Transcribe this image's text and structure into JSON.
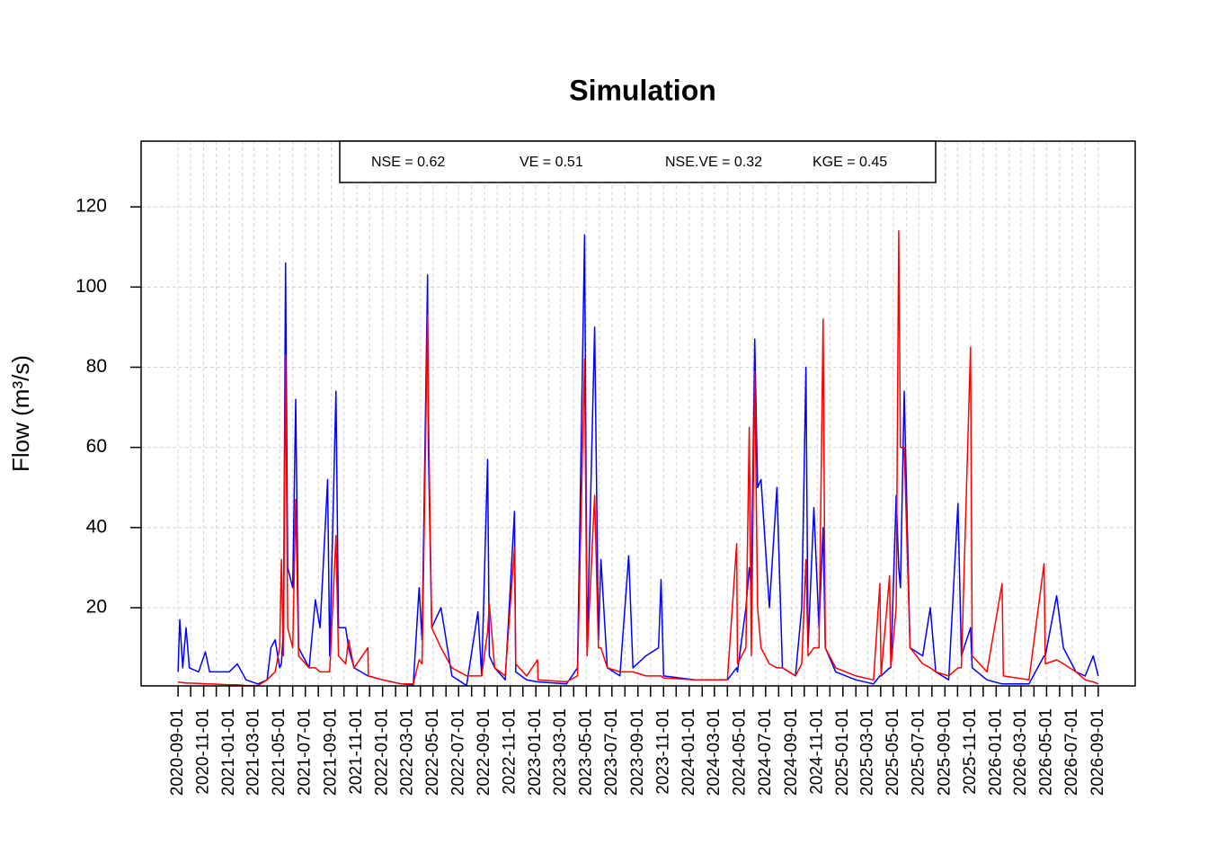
{
  "chart_data": {
    "type": "line",
    "title": "Simulation",
    "y_label": "Flow (m³/s)",
    "annotations": [
      "NSE = 0.62",
      "VE = 0.51",
      "NSE.VE = 0.32",
      "KGE = 0.45"
    ],
    "x": [
      "2020-09-01",
      "2020-09-05",
      "2020-09-12",
      "2020-09-20",
      "2020-09-28",
      "2020-10-20",
      "2020-11-05",
      "2020-11-15",
      "2021-01-01",
      "2021-01-20",
      "2021-02-10",
      "2021-03-10",
      "2021-04-01",
      "2021-04-10",
      "2021-04-20",
      "2021-05-01",
      "2021-05-05",
      "2021-05-10",
      "2021-05-15",
      "2021-05-20",
      "2021-06-01",
      "2021-06-08",
      "2021-06-15",
      "2021-07-10",
      "2021-07-25",
      "2021-08-05",
      "2021-08-23",
      "2021-08-28",
      "2021-09-12",
      "2021-09-18",
      "2021-10-05",
      "2021-10-12",
      "2021-10-25",
      "2021-11-27",
      "2021-11-28",
      "2022-01-01",
      "2022-02-15",
      "2022-03-15",
      "2022-03-29",
      "2022-04-05",
      "2022-04-18",
      "2022-04-20",
      "2022-04-28",
      "2022-05-20",
      "2022-06-15",
      "2022-07-20",
      "2022-08-16",
      "2022-08-25",
      "2022-09-08",
      "2022-09-12",
      "2022-09-25",
      "2022-10-20",
      "2022-11-11",
      "2022-11-14",
      "2022-12-10",
      "2023-01-05",
      "2023-01-06",
      "2023-03-15",
      "2023-04-10",
      "2023-04-27",
      "2023-05-03",
      "2023-05-21",
      "2023-05-30",
      "2023-06-05",
      "2023-06-20",
      "2023-07-20",
      "2023-08-10",
      "2023-08-20",
      "2023-09-20",
      "2023-10-20",
      "2023-10-26",
      "2023-11-01",
      "2024-01-15",
      "2024-04-01",
      "2024-04-23",
      "2024-04-25",
      "2024-05-15",
      "2024-05-23",
      "2024-05-28",
      "2024-06-05",
      "2024-06-12",
      "2024-06-20",
      "2024-07-10",
      "2024-07-28",
      "2024-08-10",
      "2024-09-10",
      "2024-09-25",
      "2024-10-05",
      "2024-10-10",
      "2024-10-24",
      "2024-11-05",
      "2024-11-15",
      "2024-11-20",
      "2024-12-15",
      "2025-02-01",
      "2025-03-15",
      "2025-03-30",
      "2025-04-02",
      "2025-04-22",
      "2025-04-25",
      "2025-05-08",
      "2025-05-14",
      "2025-05-18",
      "2025-05-27",
      "2025-06-10",
      "2025-07-10",
      "2025-07-28",
      "2025-08-10",
      "2025-09-10",
      "2025-10-02",
      "2025-10-10",
      "2025-11-01",
      "2025-11-05",
      "2025-12-10",
      "2026-01-15",
      "2026-01-18",
      "2026-03-20",
      "2026-04-25",
      "2026-04-28",
      "2026-05-25",
      "2026-06-10",
      "2026-07-10",
      "2026-08-01",
      "2026-08-20",
      "2026-09-01"
    ],
    "series": [
      {
        "color": "#0000ff",
        "values": [
          4,
          17,
          5,
          15,
          5,
          4,
          9,
          4,
          4,
          6,
          2,
          1,
          2,
          10,
          12,
          5,
          6,
          15,
          106,
          30,
          25,
          72,
          10,
          5,
          22,
          15,
          52,
          8,
          74,
          15,
          15,
          10,
          5,
          3,
          3,
          2,
          1,
          0.8,
          25,
          12,
          103,
          60,
          15,
          20,
          3,
          0.6,
          19,
          3,
          57,
          8,
          5,
          2,
          44,
          4,
          2,
          1.5,
          1.5,
          1,
          5,
          113,
          10,
          90,
          12,
          32,
          5,
          3,
          33,
          5,
          8,
          10,
          27,
          3,
          2,
          2,
          5,
          4,
          20,
          30,
          25,
          87,
          50,
          52,
          20,
          50,
          5,
          3,
          20,
          80,
          10,
          45,
          15,
          40,
          10,
          4,
          2,
          1,
          3,
          3,
          5,
          5,
          48,
          30,
          25,
          74,
          10,
          8,
          20,
          4,
          2,
          46,
          8,
          15,
          5,
          2,
          1,
          1,
          1,
          8,
          8,
          23,
          10,
          4,
          3,
          8,
          3
        ]
      },
      {
        "color": "#ff0000",
        "values": [
          1.5,
          1.4,
          1.3,
          1.2,
          1.2,
          1.1,
          1,
          1,
          0.8,
          0.8,
          0.6,
          0.6,
          2,
          3,
          4,
          10,
          32,
          8,
          83,
          15,
          10,
          47,
          8,
          5,
          5,
          4,
          4,
          4,
          38,
          8,
          6,
          12,
          5,
          10,
          3,
          2,
          1,
          1,
          7,
          6,
          93,
          70,
          15,
          10,
          5,
          3,
          3,
          3,
          14,
          21,
          5,
          3,
          35,
          6,
          3,
          7,
          2,
          1.5,
          3,
          82,
          8,
          48,
          10,
          10,
          5,
          4,
          4,
          4,
          3,
          3,
          3,
          2.5,
          2,
          2,
          36,
          6,
          10,
          65,
          8,
          79,
          20,
          10,
          6,
          5,
          5,
          3,
          6,
          32,
          8,
          10,
          10,
          92,
          10,
          5,
          3,
          2,
          26,
          3,
          28,
          5,
          20,
          114,
          60,
          60,
          10,
          6,
          5,
          4,
          3,
          5,
          5,
          85,
          8,
          4,
          26,
          3,
          2,
          31,
          6,
          7,
          6,
          4,
          2,
          1.5,
          1
        ]
      }
    ],
    "xlim": [
      "2020-06-05",
      "2026-11-28"
    ],
    "xticks": [
      "2020-09-01",
      "2020-11-01",
      "2021-01-01",
      "2021-03-01",
      "2021-05-01",
      "2021-07-01",
      "2021-09-01",
      "2021-11-01",
      "2022-01-01",
      "2022-03-01",
      "2022-05-01",
      "2022-07-01",
      "2022-09-01",
      "2022-11-01",
      "2023-01-01",
      "2023-03-01",
      "2023-05-01",
      "2023-07-01",
      "2023-09-01",
      "2023-11-01",
      "2024-01-01",
      "2024-03-01",
      "2024-05-01",
      "2024-07-01",
      "2024-09-01",
      "2024-11-01",
      "2025-01-01",
      "2025-03-01",
      "2025-05-01",
      "2025-07-01",
      "2025-09-01",
      "2025-11-01",
      "2026-01-01",
      "2026-03-01",
      "2026-05-01",
      "2026-07-01",
      "2026-09-01"
    ],
    "xminorticks": [
      "2020-10-01",
      "2020-12-01",
      "2021-02-01",
      "2021-04-01",
      "2021-06-01",
      "2021-08-01",
      "2021-10-01",
      "2021-12-01",
      "2022-02-01",
      "2022-04-01",
      "2022-06-01",
      "2022-08-01",
      "2022-10-01",
      "2022-12-01",
      "2023-02-01",
      "2023-04-01",
      "2023-06-01",
      "2023-08-01",
      "2023-10-01",
      "2023-12-01",
      "2024-02-01",
      "2024-04-01",
      "2024-06-01",
      "2024-08-01",
      "2024-10-01",
      "2024-12-01",
      "2025-02-01",
      "2025-04-01",
      "2025-06-01",
      "2025-08-01",
      "2025-10-01",
      "2025-12-01",
      "2026-02-01",
      "2026-04-01",
      "2026-06-01",
      "2026-08-01"
    ],
    "ylim": [
      0.5,
      136.4
    ],
    "yticks": [
      20,
      40,
      60,
      80,
      100,
      120
    ],
    "grid": true
  }
}
